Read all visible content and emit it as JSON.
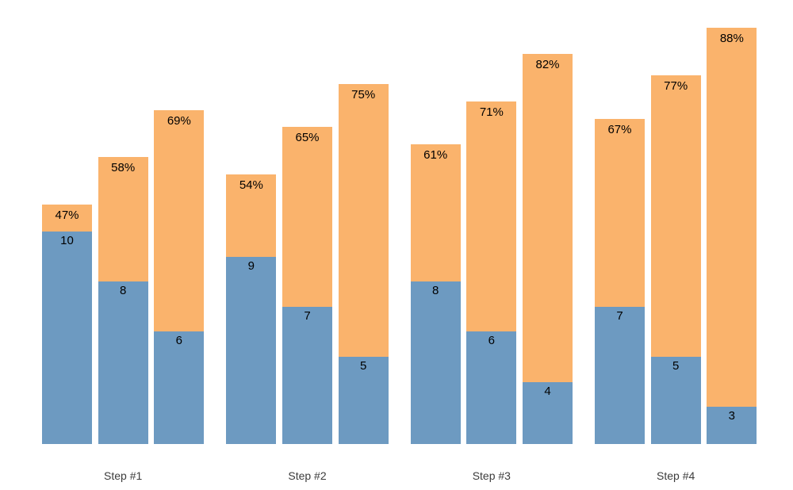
{
  "chart_data": {
    "type": "bar",
    "subtype": "grouped-stacked",
    "title": "",
    "categories": [
      "Step #1",
      "Step #2",
      "Step #3",
      "Step #4"
    ],
    "series_names": [
      "count (blue, bottom segment)",
      "percent (orange, top segment)"
    ],
    "groups": [
      {
        "category": "Step #1",
        "bars": [
          {
            "count": 10,
            "count_label": "10",
            "percent": 47,
            "percent_label": "47%"
          },
          {
            "count": 8,
            "count_label": "8",
            "percent": 58,
            "percent_label": "58%"
          },
          {
            "count": 6,
            "count_label": "6",
            "percent": 69,
            "percent_label": "69%"
          }
        ]
      },
      {
        "category": "Step #2",
        "bars": [
          {
            "count": 9,
            "count_label": "9",
            "percent": 54,
            "percent_label": "54%"
          },
          {
            "count": 7,
            "count_label": "7",
            "percent": 65,
            "percent_label": "65%"
          },
          {
            "count": 5,
            "count_label": "5",
            "percent": 75,
            "percent_label": "75%"
          }
        ]
      },
      {
        "category": "Step #3",
        "bars": [
          {
            "count": 8,
            "count_label": "8",
            "percent": 61,
            "percent_label": "61%"
          },
          {
            "count": 6,
            "count_label": "6",
            "percent": 71,
            "percent_label": "71%"
          },
          {
            "count": 4,
            "count_label": "4",
            "percent": 82,
            "percent_label": "82%"
          }
        ]
      },
      {
        "category": "Step #4",
        "bars": [
          {
            "count": 7,
            "count_label": "7",
            "percent": 67,
            "percent_label": "67%"
          },
          {
            "count": 5,
            "count_label": "5",
            "percent": 77,
            "percent_label": "77%"
          },
          {
            "count": 3,
            "count_label": "3",
            "percent": 88,
            "percent_label": "88%"
          }
        ]
      }
    ],
    "colors": {
      "count_segment": "#6d9ac1",
      "percent_segment": "#fab36c",
      "bar_label_text": "#000000",
      "category_label_text": "#3c3c3c",
      "background": "#ffffff"
    },
    "legend_position": "none",
    "grid": false,
    "axis_lines": false,
    "value_labels_inside_bars": true
  }
}
